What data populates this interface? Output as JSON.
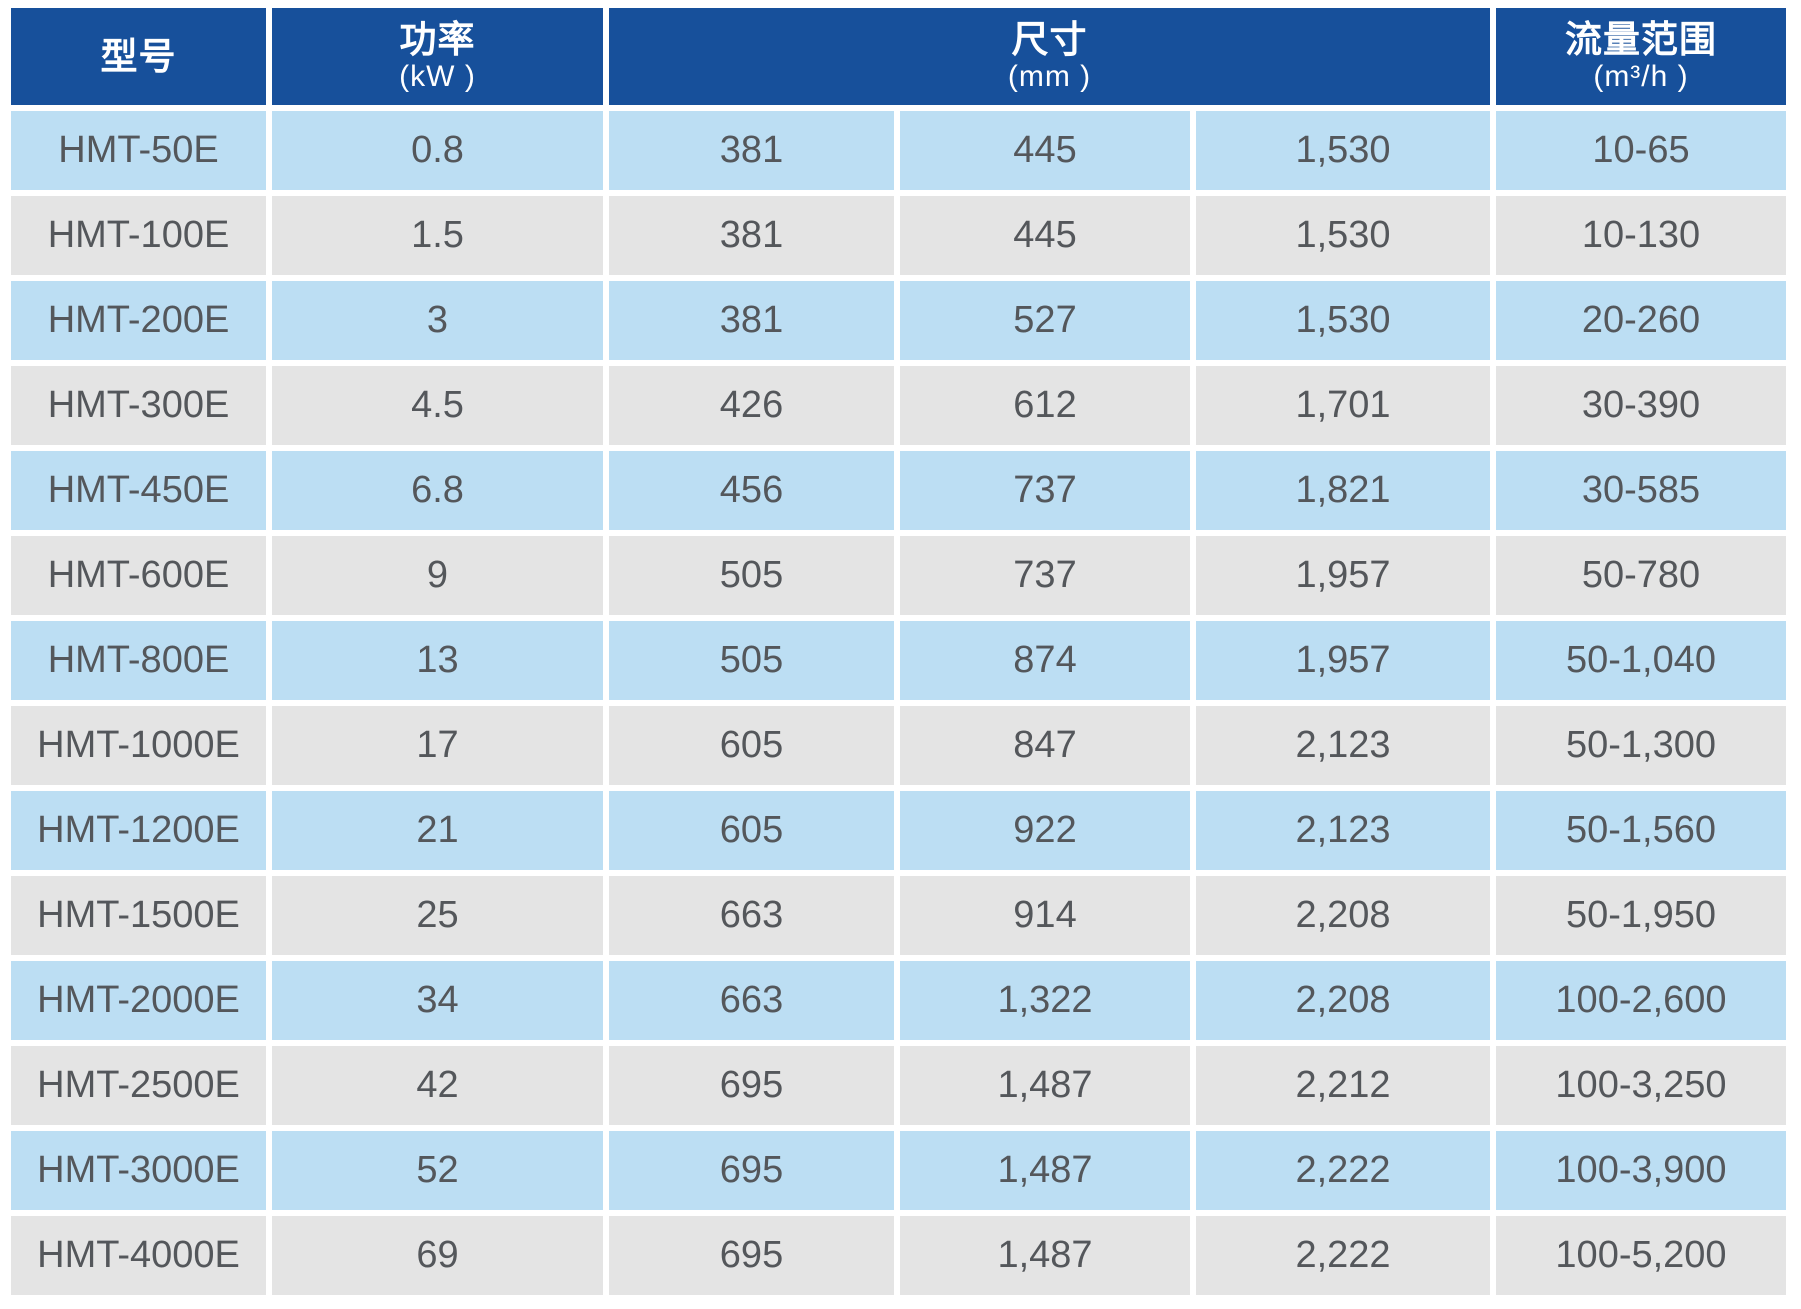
{
  "colors": {
    "header_bg": "#17509b",
    "row_stripe_blue": "#bcdef3",
    "row_stripe_gray": "#e4e4e4",
    "header_text": "#ffffff",
    "value_text": "#54575b",
    "page_bg": "#ffffff"
  },
  "table": {
    "header": {
      "model_label": "型号",
      "model_unit": "",
      "power_label": "功率",
      "power_unit": "(kW )",
      "dimensions_label": "尺寸",
      "dimensions_unit": "(mm )",
      "flow_label": "流量范围",
      "flow_unit": "(m³/h )"
    },
    "row_field_order": [
      "model",
      "power",
      "dim1",
      "dim2",
      "dim3",
      "flow"
    ],
    "rows": [
      {
        "model": "HMT-50E",
        "power": "0.8",
        "dim1": "381",
        "dim2": "445",
        "dim3": "1,530",
        "flow": "10-65"
      },
      {
        "model": "HMT-100E",
        "power": "1.5",
        "dim1": "381",
        "dim2": "445",
        "dim3": "1,530",
        "flow": "10-130"
      },
      {
        "model": "HMT-200E",
        "power": "3",
        "dim1": "381",
        "dim2": "527",
        "dim3": "1,530",
        "flow": "20-260"
      },
      {
        "model": "HMT-300E",
        "power": "4.5",
        "dim1": "426",
        "dim2": "612",
        "dim3": "1,701",
        "flow": "30-390"
      },
      {
        "model": "HMT-450E",
        "power": "6.8",
        "dim1": "456",
        "dim2": "737",
        "dim3": "1,821",
        "flow": "30-585"
      },
      {
        "model": "HMT-600E",
        "power": "9",
        "dim1": "505",
        "dim2": "737",
        "dim3": "1,957",
        "flow": "50-780"
      },
      {
        "model": "HMT-800E",
        "power": "13",
        "dim1": "505",
        "dim2": "874",
        "dim3": "1,957",
        "flow": "50-1,040"
      },
      {
        "model": "HMT-1000E",
        "power": "17",
        "dim1": "605",
        "dim2": "847",
        "dim3": "2,123",
        "flow": "50-1,300"
      },
      {
        "model": "HMT-1200E",
        "power": "21",
        "dim1": "605",
        "dim2": "922",
        "dim3": "2,123",
        "flow": "50-1,560"
      },
      {
        "model": "HMT-1500E",
        "power": "25",
        "dim1": "663",
        "dim2": "914",
        "dim3": "2,208",
        "flow": "50-1,950"
      },
      {
        "model": "HMT-2000E",
        "power": "34",
        "dim1": "663",
        "dim2": "1,322",
        "dim3": "2,208",
        "flow": "100-2,600"
      },
      {
        "model": "HMT-2500E",
        "power": "42",
        "dim1": "695",
        "dim2": "1,487",
        "dim3": "2,212",
        "flow": "100-3,250"
      },
      {
        "model": "HMT-3000E",
        "power": "52",
        "dim1": "695",
        "dim2": "1,487",
        "dim3": "2,222",
        "flow": "100-3,900"
      },
      {
        "model": "HMT-4000E",
        "power": "69",
        "dim1": "695",
        "dim2": "1,487",
        "dim3": "2,222",
        "flow": "100-5,200"
      }
    ]
  }
}
